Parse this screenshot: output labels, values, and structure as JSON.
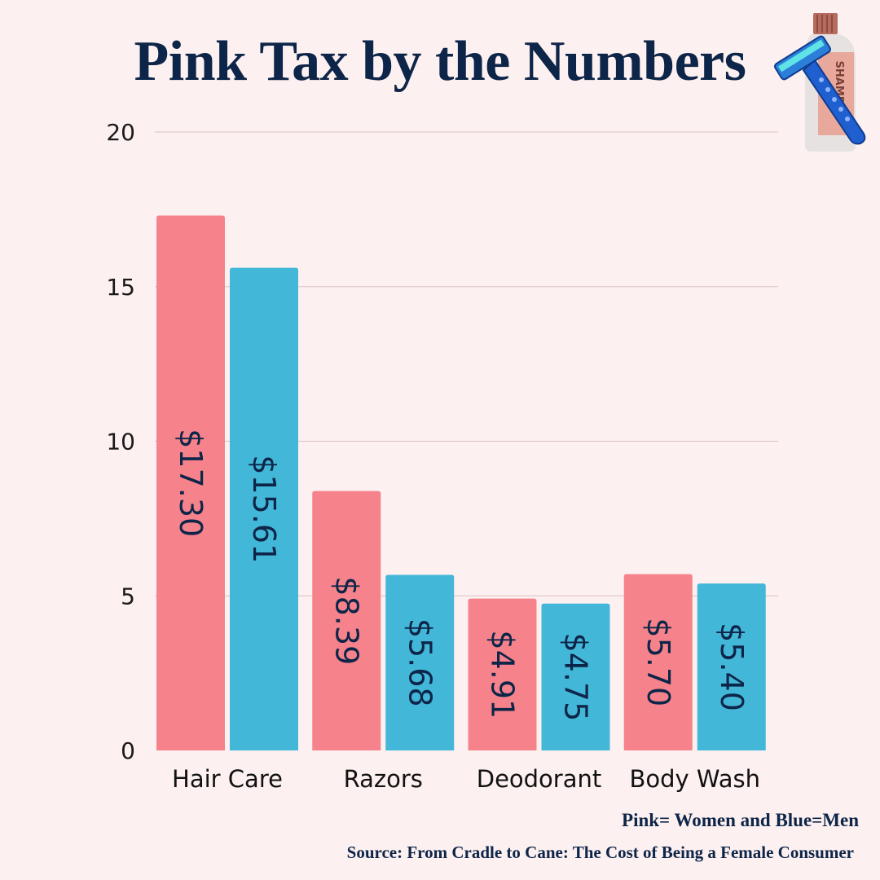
{
  "header": {
    "title": "Pink Tax by the Numbers"
  },
  "illustration": {
    "icons": [
      "shampoo-bottle-icon",
      "razor-icon"
    ],
    "bottle_text": "SHAMPOO"
  },
  "notes": {
    "legend": "Pink= Women and Blue=Men",
    "source": "Source: From Cradle to Cane: The Cost of Being a Female Consumer"
  },
  "colors": {
    "women": "#f6838b",
    "men": "#43b7d8",
    "label": "#0d2548",
    "grid": "#d9c2c2",
    "background": "#fdf0f0"
  },
  "chart_data": {
    "type": "bar",
    "title": "Pink Tax by the Numbers",
    "categories": [
      "Hair Care",
      "Razors",
      "Deodorant",
      "Body Wash"
    ],
    "series": [
      {
        "color": "#f6838b",
        "values": [
          17.3,
          8.39,
          4.91,
          5.7
        ],
        "labels": [
          "$17.30",
          "$8.39",
          "$4.91",
          "$5.70"
        ]
      },
      {
        "color": "#43b7d8",
        "values": [
          15.61,
          5.68,
          4.75,
          5.4
        ],
        "labels": [
          "$15.61",
          "$5.68",
          "$4.75",
          "$5.40"
        ]
      }
    ],
    "yticks": [
      "0",
      "5",
      "10",
      "15",
      "20"
    ],
    "ylim": [
      0,
      20
    ],
    "grid": true,
    "legend": "none"
  }
}
